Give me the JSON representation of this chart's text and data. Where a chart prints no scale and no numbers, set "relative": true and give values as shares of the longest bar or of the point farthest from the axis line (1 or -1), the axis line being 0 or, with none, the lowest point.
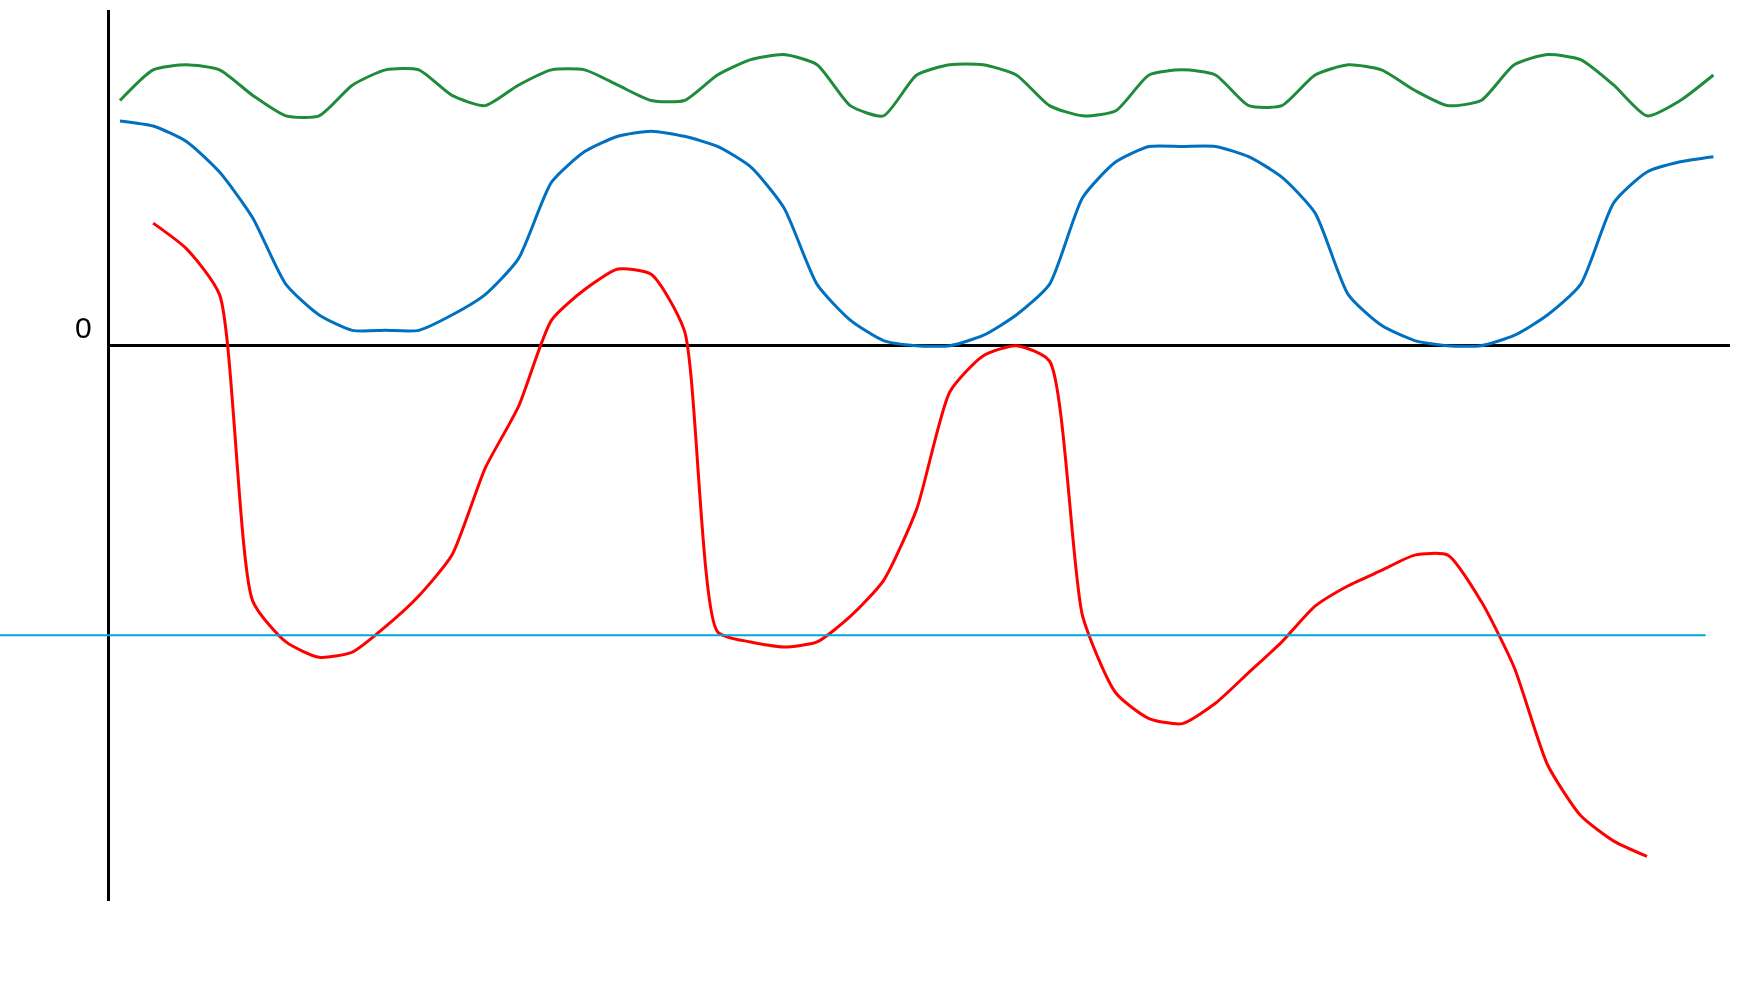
{
  "chart_data": {
    "type": "line",
    "relative": true,
    "categories": [
      null,
      null,
      null,
      null,
      null,
      null,
      null,
      null,
      null,
      null,
      null,
      null,
      null,
      null,
      null,
      null,
      null,
      null,
      null,
      null,
      null,
      null,
      null,
      null,
      null,
      null,
      null,
      null,
      null,
      null,
      null,
      null,
      null,
      null,
      null,
      null,
      null,
      null,
      null,
      null,
      null,
      null,
      null,
      null,
      null,
      null,
      null,
      null,
      null
    ],
    "series": [
      {
        "color": "#1e8c3a",
        "values": [
          0.48,
          0.54,
          0.55,
          0.54,
          0.49,
          0.45,
          0.45,
          0.51,
          0.54,
          0.54,
          0.49,
          0.47,
          0.51,
          0.54,
          0.54,
          0.51,
          0.48,
          0.48,
          0.53,
          0.56,
          0.57,
          0.55,
          0.47,
          0.45,
          0.53,
          0.55,
          0.55,
          0.53,
          0.47,
          0.45,
          0.46,
          0.53,
          0.54,
          0.53,
          0.47,
          0.47,
          0.53,
          0.55,
          0.54,
          0.5,
          0.47,
          0.48,
          0.55,
          0.57,
          0.56,
          0.51,
          0.45,
          0.48,
          0.53
        ]
      },
      {
        "color": "#0070c0",
        "values": [
          0.44,
          0.43,
          0.4,
          0.34,
          0.25,
          0.12,
          0.06,
          0.03,
          0.03,
          0.03,
          0.06,
          0.1,
          0.17,
          0.32,
          0.38,
          0.41,
          0.42,
          0.41,
          0.39,
          0.35,
          0.27,
          0.12,
          0.05,
          0.01,
          0,
          0,
          0.02,
          0.06,
          0.12,
          0.29,
          0.36,
          0.39,
          0.39,
          0.39,
          0.37,
          0.33,
          0.26,
          0.1,
          0.04,
          0.01,
          0,
          0,
          0.02,
          0.06,
          0.12,
          0.28,
          0.34,
          0.36,
          0.37
        ]
      },
      {
        "color": "#ff0000",
        "values": [
          null,
          0.24,
          0.19,
          0.1,
          -0.5,
          -0.58,
          -0.61,
          -0.6,
          -0.55,
          -0.49,
          -0.41,
          -0.24,
          -0.12,
          0.05,
          0.11,
          0.15,
          0.14,
          0.03,
          -0.56,
          -0.58,
          -0.59,
          -0.58,
          -0.53,
          -0.46,
          -0.32,
          -0.09,
          -0.02,
          0,
          -0.03,
          -0.53,
          -0.68,
          -0.73,
          -0.74,
          -0.7,
          -0.64,
          -0.58,
          -0.51,
          -0.47,
          -0.44,
          -0.41,
          -0.41,
          -0.5,
          -0.63,
          -0.82,
          -0.92,
          -0.97,
          -1.0,
          null,
          null
        ]
      }
    ],
    "ref_lines": [
      {
        "axis": "y",
        "value": -0.567,
        "color": "#00a8d8"
      }
    ],
    "annotations": [
      "0"
    ]
  }
}
